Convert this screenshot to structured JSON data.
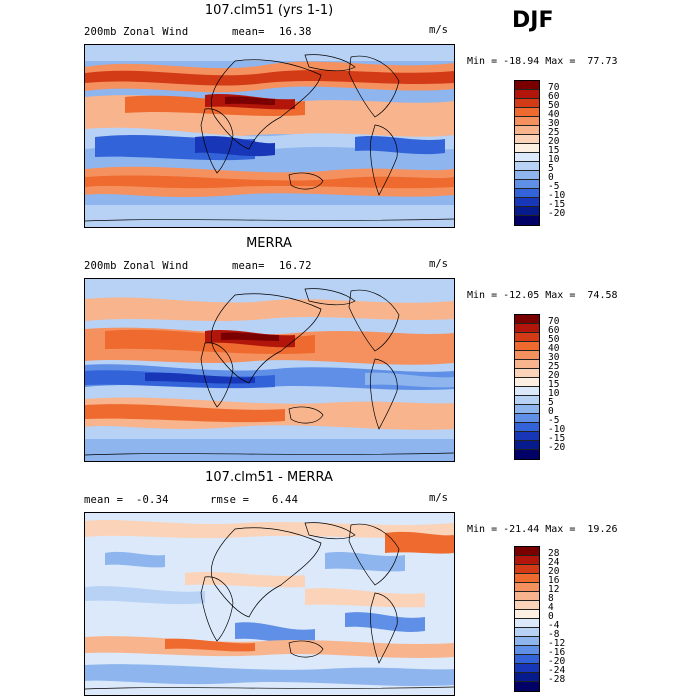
{
  "season": "DJF",
  "panels": [
    {
      "title": "107.clm51 (yrs 1-1)",
      "left_label": "200mb Zonal Wind",
      "stat_label": "mean=",
      "stat_value": "16.38",
      "units": "m/s",
      "minmax": "Min = -18.94 Max =  77.73",
      "colorbar_labels": [
        "70",
        "60",
        "50",
        "40",
        "30",
        "25",
        "20",
        "15",
        "10",
        "5",
        "0",
        "-5",
        "-10",
        "-15",
        "-20"
      ],
      "colors": [
        "#7a0000",
        "#b2160a",
        "#d33a16",
        "#ee6a2e",
        "#f5915f",
        "#f8b48d",
        "#fbd3b8",
        "#fdf0e3",
        "#dce9fa",
        "#b7d2f5",
        "#8eb5ee",
        "#5f8fe6",
        "#3363d8",
        "#1736b8",
        "#061c8c",
        "#000066"
      ]
    },
    {
      "title": "MERRA",
      "left_label": "200mb Zonal Wind",
      "stat_label": "mean=",
      "stat_value": "16.72",
      "units": "m/s",
      "minmax": "Min = -12.05 Max =  74.58",
      "colorbar_labels": [
        "70",
        "60",
        "50",
        "40",
        "30",
        "25",
        "20",
        "15",
        "10",
        "5",
        "0",
        "-5",
        "-10",
        "-15",
        "-20"
      ],
      "colors": [
        "#7a0000",
        "#b2160a",
        "#d33a16",
        "#ee6a2e",
        "#f5915f",
        "#f8b48d",
        "#fbd3b8",
        "#fdf0e3",
        "#dce9fa",
        "#b7d2f5",
        "#8eb5ee",
        "#5f8fe6",
        "#3363d8",
        "#1736b8",
        "#061c8c",
        "#000066"
      ]
    },
    {
      "title": "107.clm51 - MERRA",
      "left_label": "mean =",
      "left_value": "-0.34",
      "stat_label": "rmse =",
      "stat_value": "6.44",
      "units": "m/s",
      "minmax": "Min = -21.44 Max =  19.26",
      "colorbar_labels": [
        "28",
        "24",
        "20",
        "16",
        "12",
        "8",
        "4",
        "0",
        "-4",
        "-8",
        "-12",
        "-16",
        "-20",
        "-24",
        "-28"
      ],
      "colors": [
        "#7a0000",
        "#b2160a",
        "#d33a16",
        "#ee6a2e",
        "#f5915f",
        "#f8b48d",
        "#fbd3b8",
        "#fdf0e3",
        "#dce9fa",
        "#b7d2f5",
        "#8eb5ee",
        "#5f8fe6",
        "#3363d8",
        "#1736b8",
        "#061c8c",
        "#000066"
      ]
    }
  ]
}
